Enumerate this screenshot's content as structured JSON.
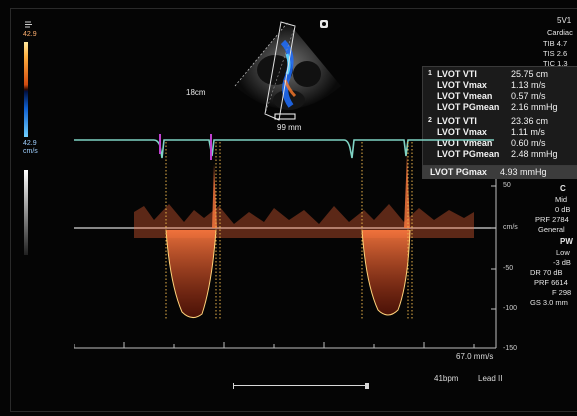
{
  "top_left_icon": "tgc-icon",
  "probe_marker": "probe-orientation-icon",
  "colorbar": {
    "top_value": "42.9",
    "bottom_value": "42.9",
    "unit": "cm/s"
  },
  "sector": {
    "depth": "18cm",
    "width": "99 mm"
  },
  "header_right": {
    "probe": "5V1",
    "preset": "Cardiac",
    "tib": "TIB 4.7",
    "tis": "TIS 2.6",
    "tic": "TIC 1.3"
  },
  "measurements": [
    {
      "index": "1",
      "rows": [
        {
          "label": "LVOT VTI",
          "value": "25.75 cm"
        },
        {
          "label": "LVOT Vmax",
          "value": "1.13 m/s"
        },
        {
          "label": "LVOT Vmean",
          "value": "0.57 m/s"
        },
        {
          "label": "LVOT PGmean",
          "value": "2.16 mmHg"
        }
      ]
    },
    {
      "index": "2",
      "rows": [
        {
          "label": "LVOT VTI",
          "value": "23.36 cm"
        },
        {
          "label": "LVOT Vmax",
          "value": "1.11 m/s"
        },
        {
          "label": "LVOT Vmean",
          "value": "0.60 m/s"
        },
        {
          "label": "LVOT PGmean",
          "value": "2.48 mmHg"
        }
      ]
    }
  ],
  "pgmax": {
    "label": "LVOT PGmax",
    "value": "4.93 mmHg"
  },
  "color_settings": {
    "title": "C",
    "lines": [
      "Mid",
      "0 dB",
      "PRF 2784",
      "General"
    ]
  },
  "pw_settings": {
    "title": "PW",
    "lines": [
      "Low",
      "-3 dB",
      "DR 70 dB",
      "PRF 6614",
      "F 298",
      "GS 3.0 mm"
    ]
  },
  "doppler_scale": {
    "unit": "cm/s",
    "ticks": [
      "50",
      "-50",
      "-100",
      "-150"
    ]
  },
  "sweep_speed": "67.0 mm/s",
  "heart_rate": "41bpm",
  "ecg_lead": "Lead II",
  "colors": {
    "ecg": "#7fd3c4",
    "spectrum": "#ff6a3a",
    "envelope": "#ffd27a",
    "marker": "#c040d0",
    "caliper": "#e9b34a"
  }
}
